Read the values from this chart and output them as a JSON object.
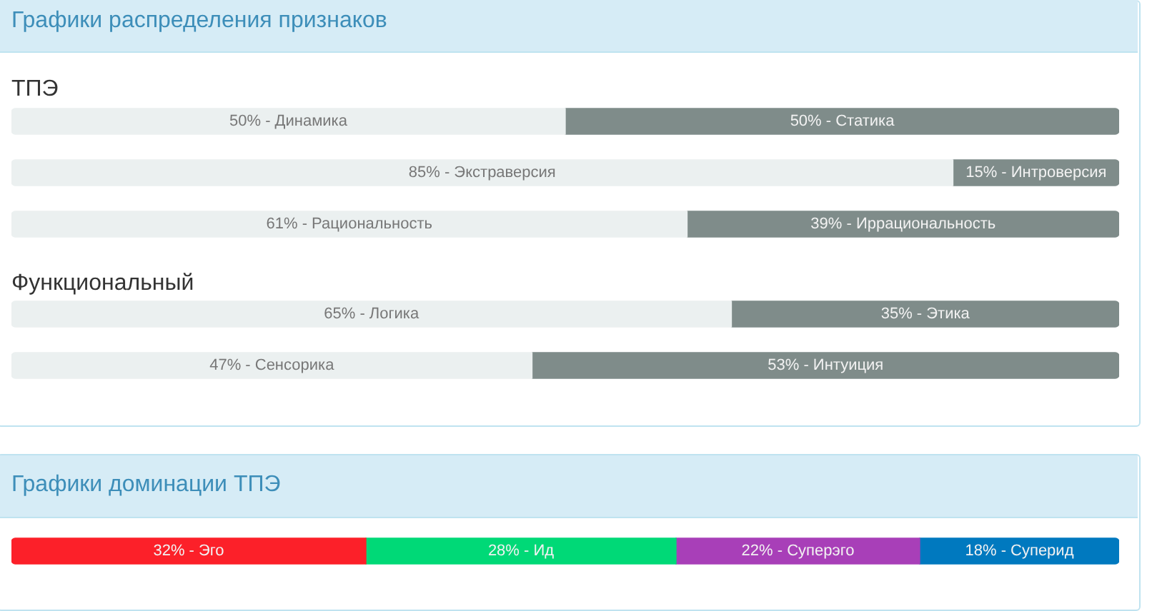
{
  "chart_data": [
    {
      "type": "bar",
      "title": "Графики распределения признаков",
      "subtitle": "ТПЭ",
      "orientation": "horizontal",
      "stacked": true,
      "categories": [
        null,
        null,
        null
      ],
      "xlim": [
        0,
        100
      ],
      "tick_labels": false,
      "grid": false,
      "legend": false,
      "series": [
        {
          "color": "#ebf0f0",
          "values": [
            50,
            85,
            61
          ],
          "value_labels": [
            "50% - Динамика",
            "85% - Экстраверсия",
            "61% - Рациональность"
          ]
        },
        {
          "color": "#7f8c8a",
          "values": [
            50,
            15,
            39
          ],
          "value_labels": [
            "50% - Статика",
            "15% - Интроверсия",
            "39% - Иррациональность"
          ]
        }
      ]
    },
    {
      "type": "bar",
      "title": "Функциональный",
      "orientation": "horizontal",
      "stacked": true,
      "categories": [
        null,
        null
      ],
      "xlim": [
        0,
        100
      ],
      "tick_labels": false,
      "grid": false,
      "legend": false,
      "series": [
        {
          "color": "#ebf0f0",
          "values": [
            65,
            47
          ],
          "value_labels": [
            "65% - Логика",
            "47% - Сенсорика"
          ]
        },
        {
          "color": "#7f8c8a",
          "values": [
            35,
            53
          ],
          "value_labels": [
            "35% - Этика",
            "53% - Интуиция"
          ]
        }
      ]
    },
    {
      "type": "bar",
      "title": "Графики доминации ТПЭ",
      "orientation": "horizontal",
      "stacked": true,
      "categories": [
        null
      ],
      "xlim": [
        0,
        100
      ],
      "tick_labels": false,
      "grid": false,
      "legend": false,
      "series": [
        {
          "color": "#fc2029",
          "values": [
            32
          ],
          "value_labels": [
            "32% - Эго"
          ]
        },
        {
          "color": "#00d977",
          "values": [
            28
          ],
          "value_labels": [
            "28% - Ид"
          ]
        },
        {
          "color": "#a83fb8",
          "values": [
            22
          ],
          "value_labels": [
            "22% - Суперэго"
          ]
        },
        {
          "color": "#0079bf",
          "values": [
            18
          ],
          "value_labels": [
            "18% - Суперид"
          ]
        }
      ]
    }
  ]
}
